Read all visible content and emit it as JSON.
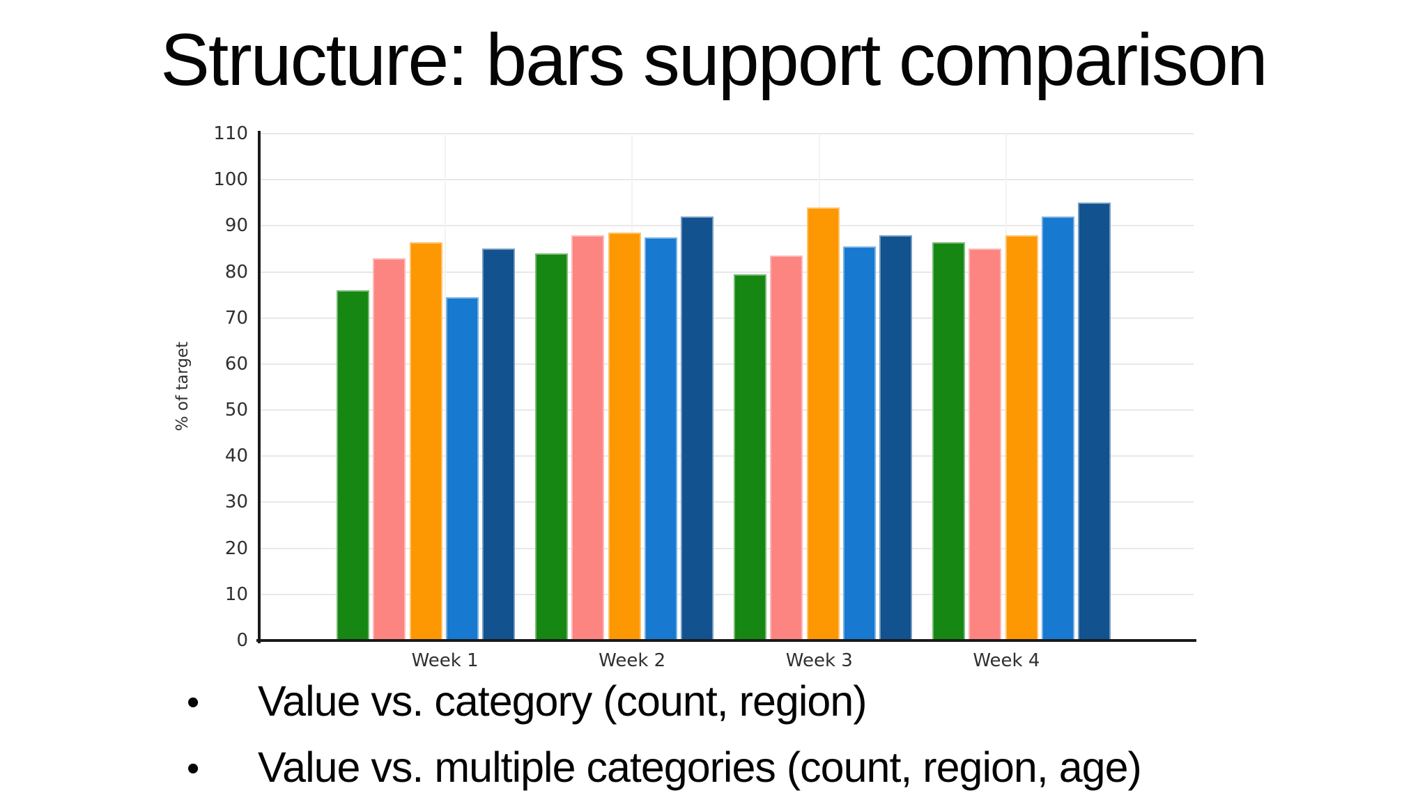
{
  "slide": {
    "title": "Structure: bars support comparison",
    "bullets": [
      "Value vs. category (count, region)",
      "Value vs. multiple categories (count, region, age)"
    ],
    "bullet_glyph": "•"
  },
  "chart_data": {
    "type": "bar",
    "title": "",
    "categories": [
      "Week 1",
      "Week 2",
      "Week 3",
      "Week 4"
    ],
    "series": [
      {
        "name": "green",
        "color": "#168712",
        "values": [
          76,
          84,
          79.5,
          86.5
        ]
      },
      {
        "name": "salmon",
        "color": "#fc8581",
        "values": [
          83,
          88,
          83.5,
          85
        ]
      },
      {
        "name": "orange",
        "color": "#fd9702",
        "values": [
          86.5,
          88.5,
          94,
          88
        ]
      },
      {
        "name": "blue",
        "color": "#1779cf",
        "values": [
          74.5,
          87.5,
          85.5,
          92
        ]
      },
      {
        "name": "dark-blue",
        "color": "#11528f",
        "values": [
          85,
          92,
          88,
          95
        ]
      }
    ],
    "xlabel": "",
    "ylabel": "% of target",
    "ylim": [
      0,
      110
    ],
    "ytick_step": 10,
    "grid": true,
    "legend": "none",
    "axis_color": "#1a1a1a",
    "grid_color": "#e8e8e8",
    "text_color": "#2f2f2f"
  }
}
